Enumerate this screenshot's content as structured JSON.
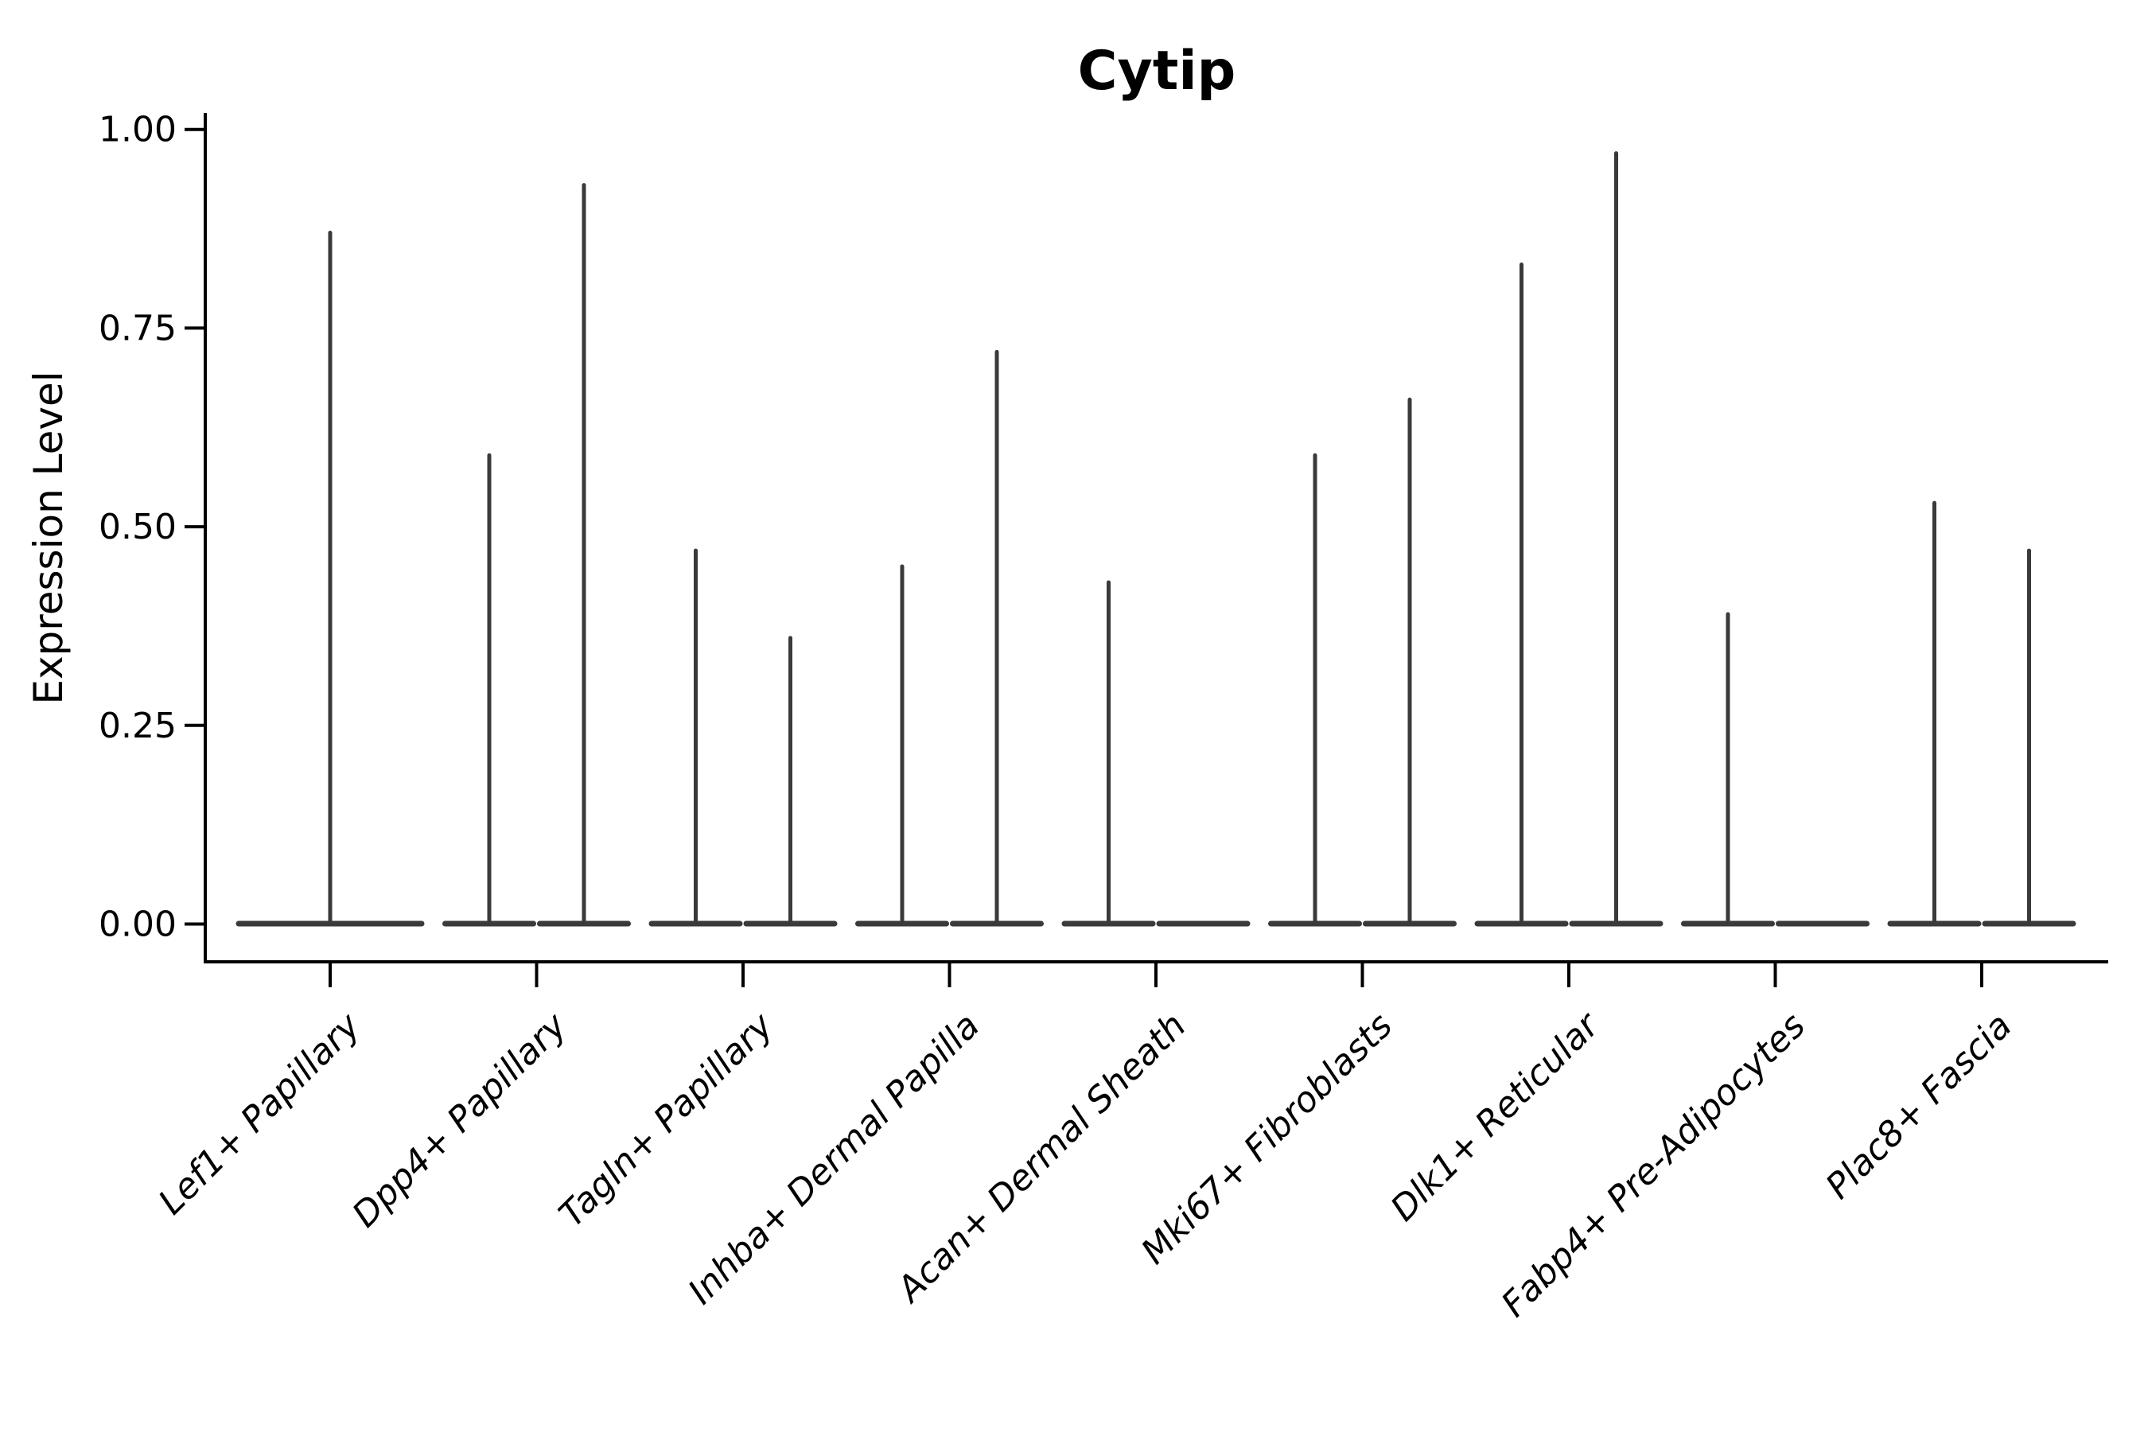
{
  "title": "Cytip",
  "chart_data": {
    "type": "violin",
    "title": "Cytip",
    "xlabel": "",
    "ylabel": "Expression Level",
    "ylim": [
      0,
      1.02
    ],
    "grid": false,
    "legend": "none",
    "yticks": [
      {
        "value": 0.0,
        "label": "0.00"
      },
      {
        "value": 0.25,
        "label": "0.25"
      },
      {
        "value": 0.5,
        "label": "0.50"
      },
      {
        "value": 0.75,
        "label": "0.75"
      },
      {
        "value": 1.0,
        "label": "1.00"
      }
    ],
    "categories": [
      "Lef1+ Papillary",
      "Dpp4+ Papillary",
      "Tagln+ Papillary",
      "Inhba+ Dermal Papilla",
      "Acan+ Dermal Sheath",
      "Mki67+ Fibroblasts",
      "Dlk1+ Reticular",
      "Fabp4+ Pre-Adipocytes",
      "Plac8+ Fascia"
    ],
    "violins": [
      {
        "category": "Lef1+ Papillary",
        "parts": [
          {
            "side": "full",
            "max": 0.87
          }
        ]
      },
      {
        "category": "Dpp4+ Papillary",
        "parts": [
          {
            "side": "left",
            "max": 0.59
          },
          {
            "side": "right",
            "max": 0.93
          }
        ]
      },
      {
        "category": "Tagln+ Papillary",
        "parts": [
          {
            "side": "left",
            "max": 0.47
          },
          {
            "side": "right",
            "max": 0.36
          }
        ]
      },
      {
        "category": "Inhba+ Dermal Papilla",
        "parts": [
          {
            "side": "left",
            "max": 0.45
          },
          {
            "side": "right",
            "max": 0.72
          }
        ]
      },
      {
        "category": "Acan+ Dermal Sheath",
        "parts": [
          {
            "side": "left",
            "max": 0.43
          },
          {
            "side": "right",
            "max": 0.0
          }
        ]
      },
      {
        "category": "Mki67+ Fibroblasts",
        "parts": [
          {
            "side": "left",
            "max": 0.59
          },
          {
            "side": "right",
            "max": 0.66
          }
        ]
      },
      {
        "category": "Dlk1+ Reticular",
        "parts": [
          {
            "side": "left",
            "max": 0.83
          },
          {
            "side": "right",
            "max": 0.97
          }
        ]
      },
      {
        "category": "Fabp4+ Pre-Adipocytes",
        "parts": [
          {
            "side": "left",
            "max": 0.39
          },
          {
            "side": "right",
            "max": 0.0
          }
        ]
      },
      {
        "category": "Plac8+ Fascia",
        "parts": [
          {
            "side": "left",
            "max": 0.53
          },
          {
            "side": "right",
            "max": 0.47
          }
        ]
      }
    ],
    "colors": {
      "violin": "#3a3a3a",
      "axis": "#000000",
      "text": "#000000",
      "background": "#ffffff"
    }
  }
}
